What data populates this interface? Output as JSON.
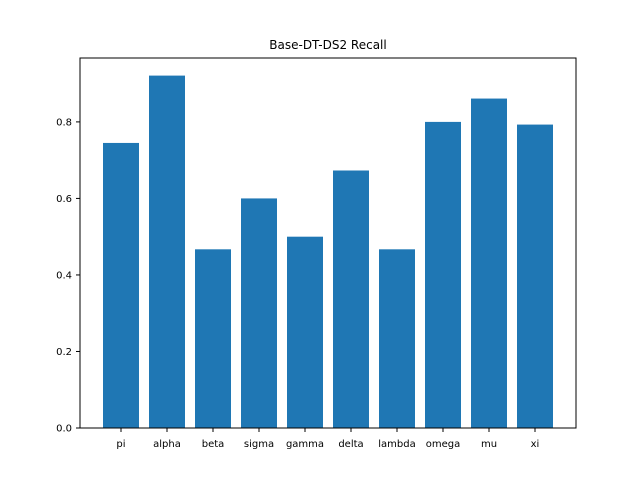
{
  "chart_data": {
    "type": "bar",
    "title": "Base-DT-DS2 Recall",
    "xlabel": "",
    "ylabel": "",
    "categories": [
      "pi",
      "alpha",
      "beta",
      "sigma",
      "gamma",
      "delta",
      "lambda",
      "omega",
      "mu",
      "xi"
    ],
    "values": [
      0.745,
      0.921,
      0.467,
      0.6,
      0.5,
      0.673,
      0.467,
      0.8,
      0.861,
      0.793
    ],
    "ylim": [
      0,
      0.967
    ],
    "yticks": [
      0.0,
      0.2,
      0.4,
      0.6,
      0.8
    ],
    "ytick_labels": [
      "0.0",
      "0.2",
      "0.4",
      "0.6",
      "0.8"
    ],
    "grid": false,
    "bar_color": "#1f77b4"
  }
}
